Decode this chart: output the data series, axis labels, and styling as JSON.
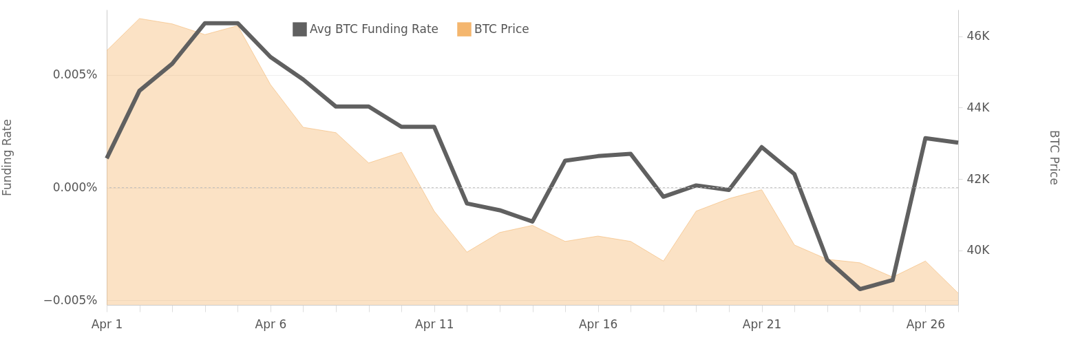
{
  "chart_data": {
    "type": "line",
    "xlabel": null,
    "ylabel": "Funding Rate",
    "y2label": "BTC Price",
    "x": [
      "--04-01",
      "--04-02",
      "--04-03",
      "--04-04",
      "--04-05",
      "--04-06",
      "--04-07",
      "--04-08",
      "--04-09",
      "--04-10",
      "--04-11",
      "--04-12",
      "--04-13",
      "--04-14",
      "--04-15",
      "--04-16",
      "--04-17",
      "--04-18",
      "--04-19",
      "--04-20",
      "--04-21",
      "--04-22",
      "--04-23",
      "--04-24",
      "--04-25",
      "--04-26",
      "--04-27"
    ],
    "series": [
      {
        "name": "Avg BTC Funding Rate",
        "type": "line",
        "color": "#606060",
        "axis": "y",
        "values": [
          0.0013,
          0.0043,
          0.0055,
          0.0073,
          0.0073,
          0.0058,
          0.0048,
          0.0036,
          0.0036,
          0.0027,
          0.0027,
          -0.0007,
          -0.001,
          -0.0015,
          0.0012,
          0.0014,
          0.0015,
          -0.0004,
          0.0001,
          -0.0001,
          0.0018,
          0.0006,
          -0.0032,
          -0.0045,
          -0.0041,
          0.0022,
          0.002
        ]
      },
      {
        "name": "BTC Price",
        "type": "area",
        "color": "#f4b66e",
        "axis": "y2",
        "values": [
          45600,
          46500,
          46350,
          46050,
          46300,
          44650,
          43450,
          43300,
          42450,
          42750,
          41100,
          39950,
          40500,
          40700,
          40250,
          40400,
          40250,
          39700,
          41100,
          41450,
          41700,
          40150,
          39750,
          39650,
          39250,
          39700,
          38800
        ]
      }
    ],
    "xlim": [
      "--04-01",
      "--04-27"
    ],
    "xticks": [
      {
        "value": "--04-01",
        "label": "Apr 1"
      },
      {
        "value": "--04-02",
        "label": null
      },
      {
        "value": "--04-03",
        "label": null
      },
      {
        "value": "--04-04",
        "label": null
      },
      {
        "value": "--04-05",
        "label": null
      },
      {
        "value": "--04-06",
        "label": "Apr 6"
      },
      {
        "value": "--04-07",
        "label": null
      },
      {
        "value": "--04-08",
        "label": null
      },
      {
        "value": "--04-09",
        "label": null
      },
      {
        "value": "--04-10",
        "label": null
      },
      {
        "value": "--04-11",
        "label": "Apr 11"
      },
      {
        "value": "--04-12",
        "label": null
      },
      {
        "value": "--04-13",
        "label": null
      },
      {
        "value": "--04-14",
        "label": null
      },
      {
        "value": "--04-15",
        "label": null
      },
      {
        "value": "--04-16",
        "label": "Apr 16"
      },
      {
        "value": "--04-17",
        "label": null
      },
      {
        "value": "--04-18",
        "label": null
      },
      {
        "value": "--04-19",
        "label": null
      },
      {
        "value": "--04-20",
        "label": null
      },
      {
        "value": "--04-21",
        "label": "Apr 21"
      },
      {
        "value": "--04-22",
        "label": null
      },
      {
        "value": "--04-23",
        "label": null
      },
      {
        "value": "--04-24",
        "label": null
      },
      {
        "value": "--04-25",
        "label": null
      },
      {
        "value": "--04-26",
        "label": "Apr 26"
      },
      {
        "value": "--04-27",
        "label": null
      }
    ],
    "ylim": [
      -0.0052,
      0.0079
    ],
    "yticks": [
      {
        "value": -0.005,
        "label": "−0.005%"
      },
      {
        "value": 0,
        "label": "0.000%"
      },
      {
        "value": 0.005,
        "label": "0.005%"
      }
    ],
    "y2lim": [
      38470,
      46750
    ],
    "y2ticks": [
      {
        "value": 40000,
        "label": "40K"
      },
      {
        "value": 42000,
        "label": "42K"
      },
      {
        "value": 44000,
        "label": "44K"
      },
      {
        "value": 46000,
        "label": "46K"
      }
    ],
    "ref_lines": [
      {
        "axis": "y",
        "value": 0,
        "label": null,
        "color": "#bbbbbb",
        "line_style": "dashed"
      }
    ],
    "grid": "y",
    "legend": "top"
  }
}
